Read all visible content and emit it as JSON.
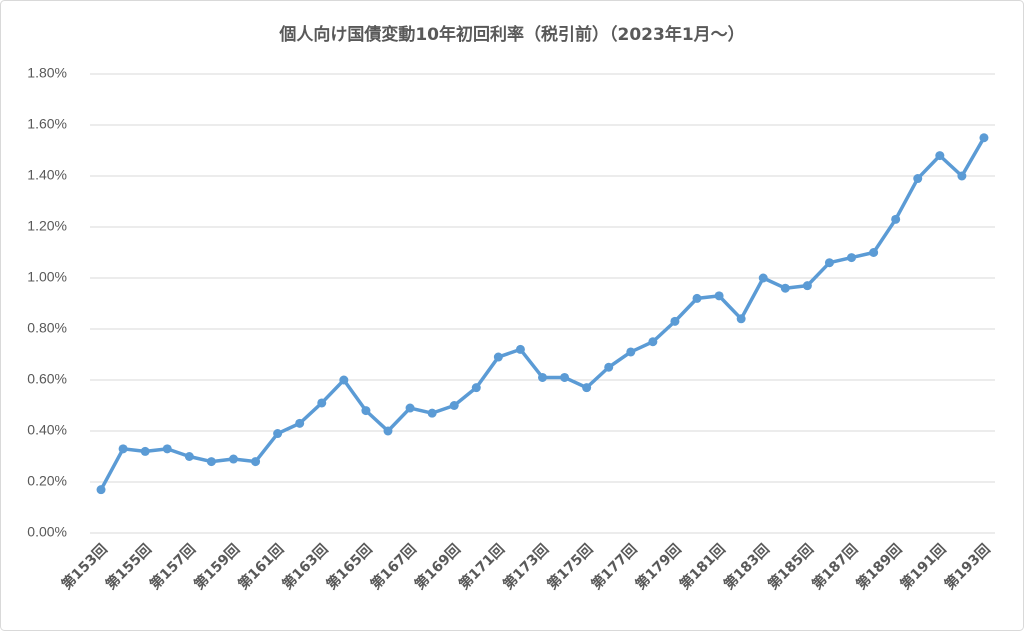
{
  "chart_data": {
    "type": "line",
    "title": "個人向け国債変動10年初回利率（税引前）（2023年1月～）",
    "categories": [
      "第153回",
      null,
      "第155回",
      null,
      "第157回",
      null,
      "第159回",
      null,
      "第161回",
      null,
      "第163回",
      null,
      "第165回",
      null,
      "第167回",
      null,
      "第169回",
      null,
      "第171回",
      null,
      "第173回",
      null,
      "第175回",
      null,
      "第177回",
      null,
      "第179回",
      null,
      "第181回",
      null,
      "第183回",
      null,
      "第185回",
      null,
      "第187回",
      null,
      "第189回",
      null,
      "第191回",
      null,
      "第193回"
    ],
    "series": [
      {
        "color": "#5b9bd5",
        "values": [
          0.17,
          0.33,
          0.32,
          0.33,
          0.3,
          0.28,
          0.29,
          0.28,
          0.39,
          0.43,
          0.51,
          0.6,
          0.48,
          0.4,
          0.49,
          0.47,
          0.5,
          0.57,
          0.69,
          0.72,
          0.61,
          0.61,
          0.57,
          0.65,
          0.71,
          0.75,
          0.83,
          0.92,
          0.93,
          0.84,
          1.0,
          0.96,
          0.97,
          1.06,
          1.08,
          1.1,
          1.23,
          1.39,
          1.48,
          1.4,
          1.55
        ]
      }
    ],
    "ylim": [
      0,
      1.8
    ],
    "yticks": [
      {
        "value": 0,
        "label": "0.00%"
      },
      {
        "value": 0.2,
        "label": "0.20%"
      },
      {
        "value": 0.4,
        "label": "0.40%"
      },
      {
        "value": 0.6,
        "label": "0.60%"
      },
      {
        "value": 0.8,
        "label": "0.80%"
      },
      {
        "value": 1.0,
        "label": "1.00%"
      },
      {
        "value": 1.2,
        "label": "1.20%"
      },
      {
        "value": 1.4,
        "label": "1.40%"
      },
      {
        "value": 1.6,
        "label": "1.60%"
      },
      {
        "value": 1.8,
        "label": "1.80%"
      }
    ],
    "grid": true
  }
}
